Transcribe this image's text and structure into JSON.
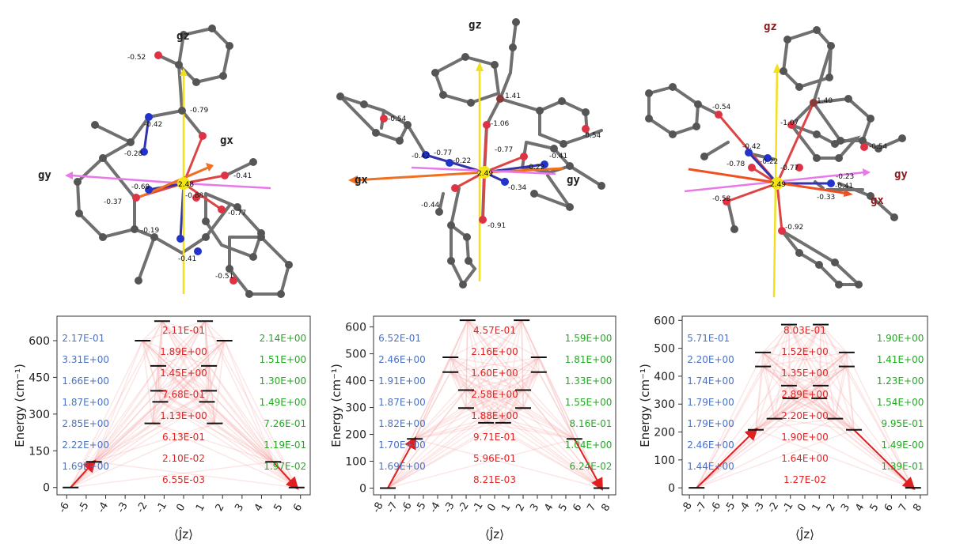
{
  "molecules": [
    {
      "axes": {
        "gz": "gz",
        "gx": "gx",
        "gy": "gy"
      },
      "center": "2.48",
      "charges": [
        "-0.52",
        "-0.42",
        "-0.79",
        "-0.28",
        "-0.41",
        "-0.69",
        "-0.88",
        "-0.37",
        "-0.77",
        "-0.19",
        "-0.41",
        "-0.51"
      ]
    },
    {
      "axes": {
        "gz": "gz",
        "gx": "gx",
        "gy": "gy"
      },
      "center": "2.49",
      "charges": [
        "1.41",
        "-0.54",
        "-1.06",
        "-0.54",
        "-0.77",
        "-0.41",
        "-0.42",
        "-0.77",
        "-0.22",
        "-0.22",
        "-0.34",
        "-0.44",
        "-0.91"
      ]
    },
    {
      "axes": {
        "gz": "gz",
        "gx": "gx",
        "gy": "gy"
      },
      "center": "2.49",
      "charges": [
        "1.40",
        "-0.54",
        "-1.07",
        "-0.54",
        "-0.42",
        "-0.78",
        "-0.22",
        "-0.77",
        "-0.23",
        "-0.41",
        "-0.33",
        "-0.58",
        "-0.92"
      ]
    }
  ],
  "chart_data": [
    {
      "type": "energy-level-diagram",
      "xlabel": "⟨Ĵz⟩",
      "ylabel": "Energy (cm⁻¹)",
      "xticks": [
        "-6",
        "-5",
        "-4",
        "-3",
        "-2",
        "-1",
        "0",
        "1",
        "2",
        "3",
        "4",
        "5",
        "6"
      ],
      "yticks": [
        "0",
        "150",
        "300",
        "450",
        "600"
      ],
      "ylim": [
        -30,
        700
      ],
      "xlim": [
        -6.5,
        6.5
      ],
      "levels": [
        {
          "jz": -5.8,
          "e": 0
        },
        {
          "jz": 5.8,
          "e": 0
        },
        {
          "jz": -4.6,
          "e": 105
        },
        {
          "jz": 4.6,
          "e": 105
        },
        {
          "jz": -1.6,
          "e": 262
        },
        {
          "jz": 1.6,
          "e": 262
        },
        {
          "jz": -1.2,
          "e": 350
        },
        {
          "jz": 1.2,
          "e": 350
        },
        {
          "jz": -1.3,
          "e": 395
        },
        {
          "jz": 1.3,
          "e": 395
        },
        {
          "jz": -1.3,
          "e": 497
        },
        {
          "jz": 1.3,
          "e": 497
        },
        {
          "jz": -2.1,
          "e": 600
        },
        {
          "jz": 2.1,
          "e": 600
        },
        {
          "jz": -1.1,
          "e": 680
        },
        {
          "jz": 1.1,
          "e": 680
        }
      ],
      "blue_labels": [
        "2.17E-01",
        "3.31E+00",
        "1.66E+00",
        "1.87E+00",
        "2.85E+00",
        "2.22E+00",
        "1.69E+00"
      ],
      "red_labels": [
        "2.11E-01",
        "1.89E+00",
        "1.45E+00",
        "7.68E-01",
        "1.13E+00",
        "6.13E-01",
        "2.10E-02",
        "6.55E-03"
      ],
      "green_labels": [
        "2.14E+00",
        "1.51E+00",
        "1.30E+00",
        "1.49E+00",
        "7.26E-01",
        "1.19E-01",
        "1.97E-02"
      ]
    },
    {
      "type": "energy-level-diagram",
      "xlabel": "⟨Ĵz⟩",
      "ylabel": "Energy (cm⁻¹)",
      "xticks": [
        "-8",
        "-7",
        "-6",
        "-5",
        "-4",
        "-3",
        "-2",
        "-1",
        "0",
        "1",
        "2",
        "3",
        "4",
        "5",
        "6",
        "7",
        "8"
      ],
      "yticks": [
        "0",
        "100",
        "200",
        "300",
        "400",
        "500",
        "600"
      ],
      "ylim": [
        -25,
        640
      ],
      "xlim": [
        -8.5,
        8.5
      ],
      "levels": [
        {
          "jz": -7.5,
          "e": 0
        },
        {
          "jz": 7.5,
          "e": 0
        },
        {
          "jz": -5.6,
          "e": 183
        },
        {
          "jz": 5.6,
          "e": 183
        },
        {
          "jz": -0.6,
          "e": 243
        },
        {
          "jz": 0.6,
          "e": 243
        },
        {
          "jz": -2.0,
          "e": 298
        },
        {
          "jz": 2.0,
          "e": 298
        },
        {
          "jz": -2.0,
          "e": 365
        },
        {
          "jz": 2.0,
          "e": 365
        },
        {
          "jz": -3.1,
          "e": 432
        },
        {
          "jz": 3.1,
          "e": 432
        },
        {
          "jz": -3.1,
          "e": 487
        },
        {
          "jz": 3.1,
          "e": 487
        },
        {
          "jz": -1.9,
          "e": 625
        },
        {
          "jz": 1.9,
          "e": 625
        }
      ],
      "blue_labels": [
        "6.52E-01",
        "2.46E+00",
        "1.91E+00",
        "1.87E+00",
        "1.82E+00",
        "1.70E+00",
        "1.69E+00"
      ],
      "red_labels": [
        "4.57E-01",
        "2.16E+00",
        "1.60E+00",
        "2.58E+00",
        "1.88E+00",
        "9.71E-01",
        "5.96E-01",
        "8.21E-03"
      ],
      "green_labels": [
        "1.59E+00",
        "1.81E+00",
        "1.33E+00",
        "1.55E+00",
        "8.16E-01",
        "1.04E+00",
        "6.24E-02"
      ]
    },
    {
      "type": "energy-level-diagram",
      "xlabel": "⟨Ĵz⟩",
      "ylabel": "Energy (cm⁻¹)",
      "xticks": [
        "-8",
        "-7",
        "-6",
        "-5",
        "-4",
        "-3",
        "-2",
        "-1",
        "0",
        "1",
        "2",
        "3",
        "4",
        "5",
        "6",
        "7",
        "8"
      ],
      "yticks": [
        "0",
        "100",
        "200",
        "300",
        "400",
        "500",
        "600"
      ],
      "ylim": [
        -25,
        615
      ],
      "xlim": [
        -8.5,
        8.5
      ],
      "levels": [
        {
          "jz": -7.5,
          "e": 0
        },
        {
          "jz": 7.5,
          "e": 0
        },
        {
          "jz": -3.4,
          "e": 208
        },
        {
          "jz": 3.4,
          "e": 208
        },
        {
          "jz": -2.1,
          "e": 248
        },
        {
          "jz": 2.1,
          "e": 248
        },
        {
          "jz": -1.0,
          "e": 321
        },
        {
          "jz": 1.0,
          "e": 321
        },
        {
          "jz": -1.1,
          "e": 366
        },
        {
          "jz": 1.1,
          "e": 366
        },
        {
          "jz": -2.9,
          "e": 435
        },
        {
          "jz": 2.9,
          "e": 435
        },
        {
          "jz": -2.9,
          "e": 485
        },
        {
          "jz": 2.9,
          "e": 485
        },
        {
          "jz": -1.1,
          "e": 585
        },
        {
          "jz": 1.1,
          "e": 585
        }
      ],
      "blue_labels": [
        "5.71E-01",
        "2.20E+00",
        "1.74E+00",
        "1.79E+00",
        "1.79E+00",
        "2.46E+00",
        "1.44E+00"
      ],
      "red_labels": [
        "8.03E-01",
        "1.52E+00",
        "1.35E+00",
        "2.89E+00",
        "2.20E+00",
        "1.90E+00",
        "1.64E+00",
        "1.27E-02"
      ],
      "green_labels": [
        "1.90E+00",
        "1.41E+00",
        "1.23E+00",
        "1.54E+00",
        "9.95E-01",
        "1.49E-00",
        "1.39E-01"
      ]
    }
  ]
}
